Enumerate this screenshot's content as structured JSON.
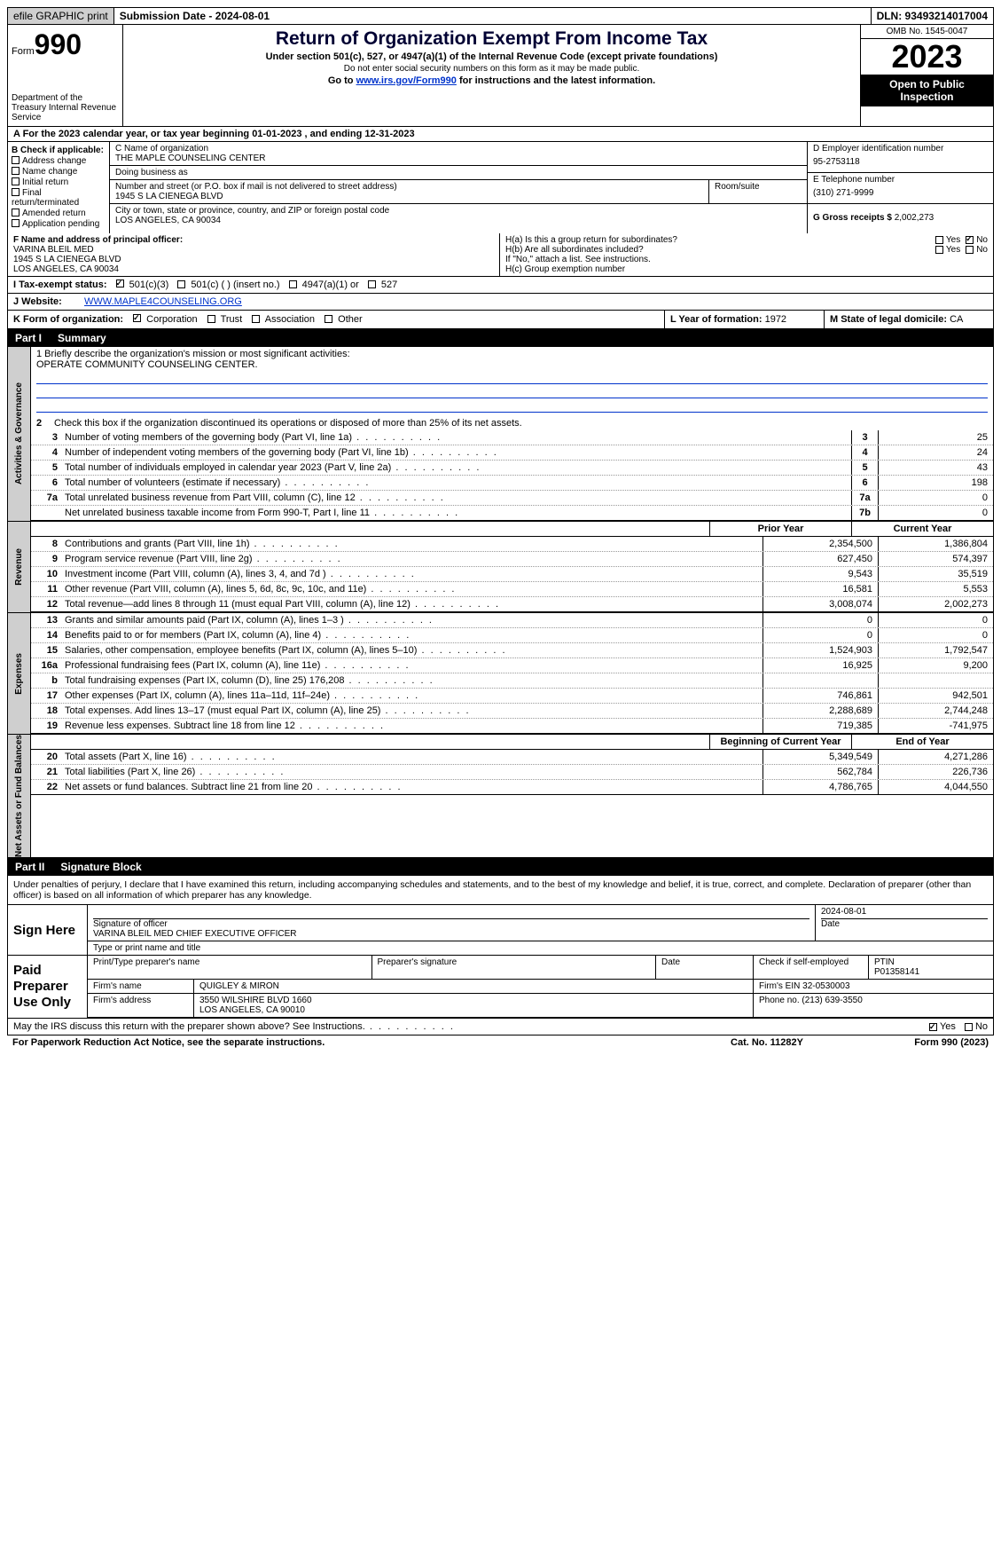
{
  "top": {
    "efile": "efile GRAPHIC print",
    "subdate": "Submission Date - 2024-08-01",
    "dln": "DLN: 93493214017004"
  },
  "header": {
    "form_label": "Form",
    "form_num": "990",
    "dept": "Department of the Treasury Internal Revenue Service",
    "title": "Return of Organization Exempt From Income Tax",
    "sub": "Under section 501(c), 527, or 4947(a)(1) of the Internal Revenue Code (except private foundations)",
    "sub2": "Do not enter social security numbers on this form as it may be made public.",
    "goto_pre": "Go to ",
    "goto_link": "www.irs.gov/Form990",
    "goto_post": " for instructions and the latest information.",
    "omb": "OMB No. 1545-0047",
    "year": "2023",
    "open": "Open to Public Inspection"
  },
  "a_row": "A For the 2023 calendar year, or tax year beginning 01-01-2023    , and ending 12-31-2023",
  "b": {
    "title": "B Check if applicable:",
    "opts": [
      "Address change",
      "Name change",
      "Initial return",
      "Final return/terminated",
      "Amended return",
      "Application pending"
    ]
  },
  "c": {
    "label": "C Name of organization",
    "name": "THE MAPLE COUNSELING CENTER",
    "dba_label": "Doing business as",
    "dba": "",
    "addr_label": "Number and street (or P.O. box if mail is not delivered to street address)",
    "room_label": "Room/suite",
    "addr": "1945 S LA CIENEGA BLVD",
    "city_label": "City or town, state or province, country, and ZIP or foreign postal code",
    "city": "LOS ANGELES, CA  90034"
  },
  "d": {
    "label": "D Employer identification number",
    "val": "95-2753118"
  },
  "e": {
    "label": "E Telephone number",
    "val": "(310) 271-9999"
  },
  "g": {
    "label": "G Gross receipts $",
    "val": "2,002,273"
  },
  "f": {
    "label": "F  Name and address of principal officer:",
    "l1": "VARINA BLEIL MED",
    "l2": "1945 S LA CIENEGA BLVD",
    "l3": "LOS ANGELES, CA  90034"
  },
  "h": {
    "a": "H(a)  Is this a group return for subordinates?",
    "b": "H(b)  Are all subordinates included?",
    "note": "If \"No,\" attach a list. See instructions.",
    "c": "H(c)  Group exemption number",
    "yes": "Yes",
    "no": "No"
  },
  "i": {
    "label": "I  Tax-exempt status:",
    "o501c3": "501(c)(3)",
    "o501c": "501(c) (  ) (insert no.)",
    "o4947": "4947(a)(1) or",
    "o527": "527"
  },
  "j": {
    "label": "J  Website:",
    "url": "WWW.MAPLE4COUNSELING.ORG"
  },
  "k": {
    "label": "K Form of organization:",
    "corp": "Corporation",
    "trust": "Trust",
    "assoc": "Association",
    "other": "Other"
  },
  "l": {
    "label": "L Year of formation:",
    "val": "1972"
  },
  "m": {
    "label": "M State of legal domicile:",
    "val": "CA"
  },
  "part1": {
    "label": "Part I",
    "title": "Summary"
  },
  "sec_ag": "Activities & Governance",
  "sec_rev": "Revenue",
  "sec_exp": "Expenses",
  "sec_net": "Net Assets or Fund Balances",
  "s1": {
    "l1": "1   Briefly describe the organization's mission or most significant activities:",
    "mission": "OPERATE COMMUNITY COUNSELING CENTER.",
    "l2": "Check this box         if the organization discontinued its operations or disposed of more than 25% of its net assets.",
    "rows": [
      {
        "n": "3",
        "t": "Number of voting members of the governing body (Part VI, line 1a)",
        "c": "3",
        "v": "25"
      },
      {
        "n": "4",
        "t": "Number of independent voting members of the governing body (Part VI, line 1b)",
        "c": "4",
        "v": "24"
      },
      {
        "n": "5",
        "t": "Total number of individuals employed in calendar year 2023 (Part V, line 2a)",
        "c": "5",
        "v": "43"
      },
      {
        "n": "6",
        "t": "Total number of volunteers (estimate if necessary)",
        "c": "6",
        "v": "198"
      },
      {
        "n": "7a",
        "t": "Total unrelated business revenue from Part VIII, column (C), line 12",
        "c": "7a",
        "v": "0"
      },
      {
        "n": "",
        "t": "Net unrelated business taxable income from Form 990-T, Part I, line 11",
        "c": "7b",
        "v": "0"
      }
    ]
  },
  "pycy": {
    "prior": "Prior Year",
    "current": "Current Year",
    "beg": "Beginning of Current Year",
    "end": "End of Year"
  },
  "rev": [
    {
      "n": "8",
      "t": "Contributions and grants (Part VIII, line 1h)",
      "p": "2,354,500",
      "c": "1,386,804"
    },
    {
      "n": "9",
      "t": "Program service revenue (Part VIII, line 2g)",
      "p": "627,450",
      "c": "574,397"
    },
    {
      "n": "10",
      "t": "Investment income (Part VIII, column (A), lines 3, 4, and 7d )",
      "p": "9,543",
      "c": "35,519"
    },
    {
      "n": "11",
      "t": "Other revenue (Part VIII, column (A), lines 5, 6d, 8c, 9c, 10c, and 11e)",
      "p": "16,581",
      "c": "5,553"
    },
    {
      "n": "12",
      "t": "Total revenue—add lines 8 through 11 (must equal Part VIII, column (A), line 12)",
      "p": "3,008,074",
      "c": "2,002,273"
    }
  ],
  "exp": [
    {
      "n": "13",
      "t": "Grants and similar amounts paid (Part IX, column (A), lines 1–3 )",
      "p": "0",
      "c": "0"
    },
    {
      "n": "14",
      "t": "Benefits paid to or for members (Part IX, column (A), line 4)",
      "p": "0",
      "c": "0"
    },
    {
      "n": "15",
      "t": "Salaries, other compensation, employee benefits (Part IX, column (A), lines 5–10)",
      "p": "1,524,903",
      "c": "1,792,547"
    },
    {
      "n": "16a",
      "t": "Professional fundraising fees (Part IX, column (A), line 11e)",
      "p": "16,925",
      "c": "9,200"
    },
    {
      "n": "b",
      "t": "Total fundraising expenses (Part IX, column (D), line 25) 176,208",
      "p": "",
      "c": "",
      "grey": true
    },
    {
      "n": "17",
      "t": "Other expenses (Part IX, column (A), lines 11a–11d, 11f–24e)",
      "p": "746,861",
      "c": "942,501"
    },
    {
      "n": "18",
      "t": "Total expenses. Add lines 13–17 (must equal Part IX, column (A), line 25)",
      "p": "2,288,689",
      "c": "2,744,248"
    },
    {
      "n": "19",
      "t": "Revenue less expenses. Subtract line 18 from line 12",
      "p": "719,385",
      "c": "-741,975"
    }
  ],
  "net": [
    {
      "n": "20",
      "t": "Total assets (Part X, line 16)",
      "p": "5,349,549",
      "c": "4,271,286"
    },
    {
      "n": "21",
      "t": "Total liabilities (Part X, line 26)",
      "p": "562,784",
      "c": "226,736"
    },
    {
      "n": "22",
      "t": "Net assets or fund balances. Subtract line 21 from line 20",
      "p": "4,786,765",
      "c": "4,044,550"
    }
  ],
  "part2": {
    "label": "Part II",
    "title": "Signature Block"
  },
  "declare": "Under penalties of perjury, I declare that I have examined this return, including accompanying schedules and statements, and to the best of my knowledge and belief, it is true, correct, and complete. Declaration of preparer (other than officer) is based on all information of which preparer has any knowledge.",
  "sign": {
    "here": "Sign Here",
    "sigof": "Signature of officer",
    "date": "Date",
    "dateval": "2024-08-01",
    "officer": "VARINA BLEIL MED  CHIEF EXECUTIVE OFFICER",
    "typeprint": "Type or print name and title"
  },
  "paid": {
    "label": "Paid Preparer Use Only",
    "pptn": "Print/Type preparer's name",
    "psig": "Preparer's signature",
    "date": "Date",
    "chkse": "Check         if self-employed",
    "ptin_l": "PTIN",
    "ptin": "P01358141",
    "firmname_l": "Firm's name",
    "firmname": "QUIGLEY & MIRON",
    "firmein_l": "Firm's EIN",
    "firmein": "32-0530003",
    "firmaddr_l": "Firm's address",
    "firmaddr1": "3550 WILSHIRE BLVD 1660",
    "firmaddr2": "LOS ANGELES, CA  90010",
    "phone_l": "Phone no.",
    "phone": "(213) 639-3550"
  },
  "mayirs": "May the IRS discuss this return with the preparer shown above? See Instructions.",
  "foot": {
    "pra": "For Paperwork Reduction Act Notice, see the separate instructions.",
    "cat": "Cat. No. 11282Y",
    "form": "Form 990 (2023)"
  },
  "yes": "Yes",
  "no": "No"
}
